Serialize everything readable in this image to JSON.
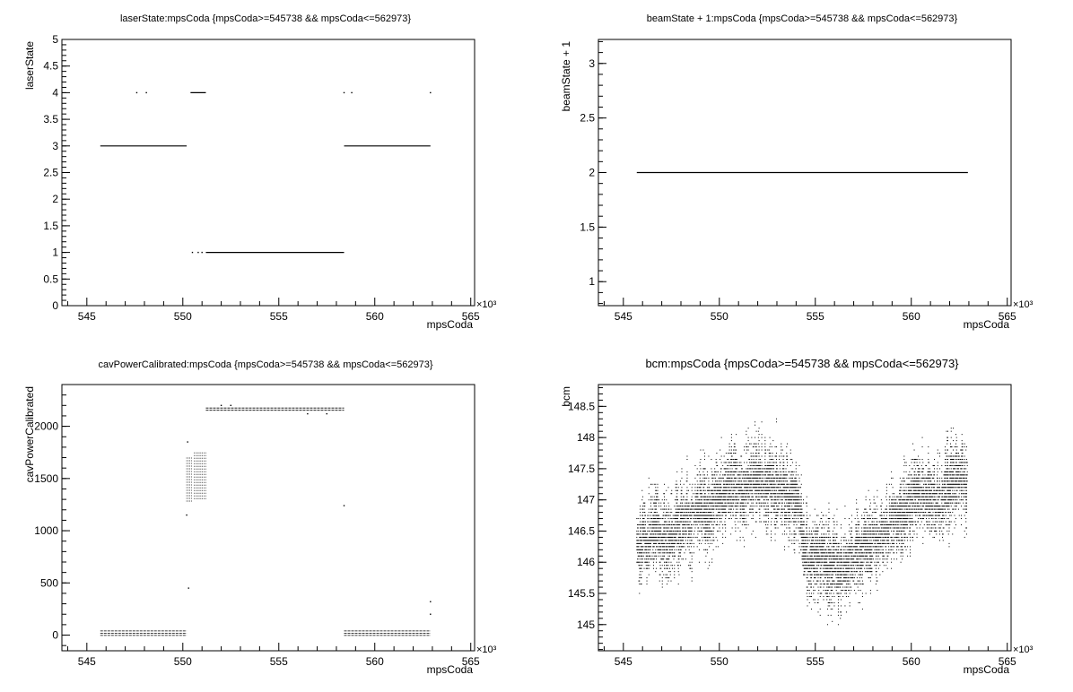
{
  "chart_data": [
    {
      "type": "scatter",
      "title": "laserState:mpsCoda {mpsCoda>=545738 && mpsCoda<=562973}",
      "xlabel": "mpsCoda",
      "ylabel": "laserState",
      "x_multiplier": "×10³",
      "xlim": [
        543.7,
        565.2
      ],
      "ylim": [
        0,
        5
      ],
      "xticks": [
        545,
        550,
        555,
        560,
        565
      ],
      "yticks": [
        0,
        0.5,
        1,
        1.5,
        2,
        2.5,
        3,
        3.5,
        4,
        4.5,
        5
      ],
      "ytick_labels": [
        "0",
        "0.5",
        "1",
        "1.5",
        "2",
        "2.5",
        "3",
        "3.5",
        "4",
        "4.5",
        "5"
      ],
      "segments": [
        {
          "x": [
            545.7,
            550.2
          ],
          "y": 3
        },
        {
          "x": [
            550.4,
            551.2
          ],
          "y": 4
        },
        {
          "x": [
            551.2,
            558.4
          ],
          "y": 1
        },
        {
          "x": [
            558.4,
            562.9
          ],
          "y": 3
        }
      ],
      "points": [
        [
          547.6,
          4
        ],
        [
          548.1,
          4
        ],
        [
          550.5,
          1
        ],
        [
          550.8,
          1
        ],
        [
          551.0,
          1
        ],
        [
          558.4,
          4
        ],
        [
          558.8,
          4
        ],
        [
          562.9,
          4
        ]
      ]
    },
    {
      "type": "scatter",
      "title": "beamState + 1:mpsCoda {mpsCoda>=545738 && mpsCoda<=562973}",
      "xlabel": "mpsCoda",
      "ylabel": "beamState + 1",
      "x_multiplier": "×10³",
      "xlim": [
        543.7,
        565.2
      ],
      "ylim": [
        0.78,
        3.22
      ],
      "xticks": [
        545,
        550,
        555,
        560,
        565
      ],
      "yticks": [
        1,
        1.5,
        2,
        2.5,
        3
      ],
      "ytick_labels": [
        "1",
        "1.5",
        "2",
        "2.5",
        "3"
      ],
      "segments": [
        {
          "x": [
            545.7,
            562.95
          ],
          "y": 2
        }
      ],
      "points": []
    },
    {
      "type": "scatter",
      "title": "cavPowerCalibrated:mpsCoda {mpsCoda>=545738 && mpsCoda<=562973}",
      "xlabel": "mpsCoda",
      "ylabel": "cavPowerCalibrated",
      "x_multiplier": "×10³",
      "xlim": [
        543.7,
        565.2
      ],
      "ylim": [
        -150,
        2400
      ],
      "xticks": [
        545,
        550,
        555,
        560,
        565
      ],
      "yticks": [
        0,
        500,
        1000,
        1500,
        2000
      ],
      "ytick_labels": [
        "0",
        "500",
        "1000",
        "1500",
        "2000"
      ],
      "bands": [
        {
          "x": [
            545.7,
            550.2
          ],
          "y": [
            -10,
            40
          ]
        },
        {
          "x": [
            551.2,
            558.4
          ],
          "y": [
            2140,
            2175
          ]
        },
        {
          "x": [
            558.4,
            562.9
          ],
          "y": [
            -10,
            40
          ]
        }
      ],
      "clusters": [
        {
          "x": [
            550.2,
            550.5
          ],
          "y": [
            1280,
            1700
          ]
        },
        {
          "x": [
            550.6,
            551.2
          ],
          "y": [
            1300,
            1750
          ]
        }
      ],
      "points": [
        [
          550.25,
          1850
        ],
        [
          550.2,
          1150
        ],
        [
          550.3,
          450
        ],
        [
          558.4,
          1240
        ],
        [
          552.0,
          2200
        ],
        [
          552.5,
          2200
        ],
        [
          556.5,
          2120
        ],
        [
          557.5,
          2120
        ],
        [
          562.9,
          320
        ],
        [
          562.9,
          200
        ]
      ]
    },
    {
      "type": "scatter",
      "title": "bcm:mpsCoda {mpsCoda>=545738 && mpsCoda<=562973}",
      "xlabel": "mpsCoda",
      "ylabel": "bcm",
      "x_multiplier": "×10³",
      "xlim": [
        543.7,
        565.2
      ],
      "ylim": [
        144.58,
        148.85
      ],
      "xticks": [
        545,
        550,
        555,
        560,
        565
      ],
      "yticks": [
        145,
        145.5,
        146,
        146.5,
        147,
        147.5,
        148,
        148.5
      ],
      "ytick_labels": [
        "145",
        "145.5",
        "146",
        "146.5",
        "147",
        "147.5",
        "148",
        "148.5"
      ],
      "trend": [
        [
          545.7,
          146.2
        ],
        [
          546.5,
          146.45
        ],
        [
          547.5,
          146.4
        ],
        [
          548.3,
          146.7
        ],
        [
          549.0,
          146.9
        ],
        [
          549.6,
          146.9
        ],
        [
          550.5,
          147.25
        ],
        [
          551.2,
          147.15
        ],
        [
          552.0,
          147.3
        ],
        [
          553.0,
          147.2
        ],
        [
          554.0,
          147.0
        ],
        [
          554.6,
          146.05
        ],
        [
          555.5,
          146.0
        ],
        [
          556.5,
          145.9
        ],
        [
          557.5,
          146.2
        ],
        [
          558.5,
          146.5
        ],
        [
          559.5,
          146.75
        ],
        [
          560.5,
          147.1
        ],
        [
          561.5,
          147.0
        ],
        [
          562.3,
          147.35
        ],
        [
          562.95,
          147.35
        ]
      ]
    }
  ]
}
